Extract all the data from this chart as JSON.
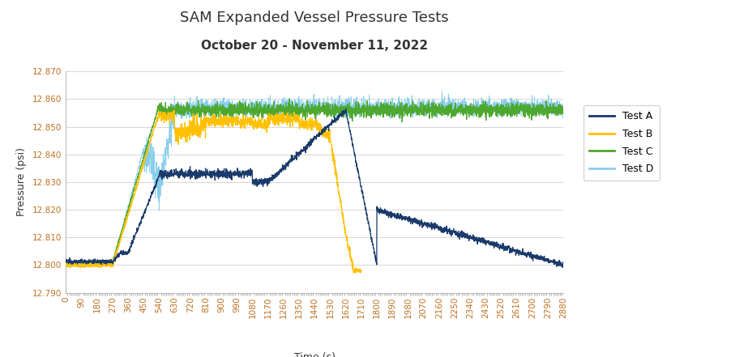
{
  "title": "SAM Expanded Vessel Pressure Tests",
  "subtitle": "October 20 - November 11, 2022",
  "xlabel": "Time (s)",
  "ylabel": "Pressure (psi)",
  "xlim": [
    0,
    2880
  ],
  "ylim": [
    12.79,
    12.87
  ],
  "yticks": [
    12.79,
    12.8,
    12.81,
    12.82,
    12.83,
    12.84,
    12.85,
    12.86,
    12.87
  ],
  "xtick_step": 90,
  "colors": {
    "Test A": "#1a3a6b",
    "Test B": "#ffc000",
    "Test C": "#4ea72e",
    "Test D": "#87ceeb"
  },
  "legend_labels": [
    "Test A",
    "Test B",
    "Test C",
    "Test D"
  ],
  "background_color": "#ffffff",
  "grid_color": "#d0d0d0",
  "title_fontsize": 13,
  "subtitle_fontsize": 11,
  "axis_label_fontsize": 9,
  "tick_fontsize": 7.5,
  "tick_color": "#c07020"
}
